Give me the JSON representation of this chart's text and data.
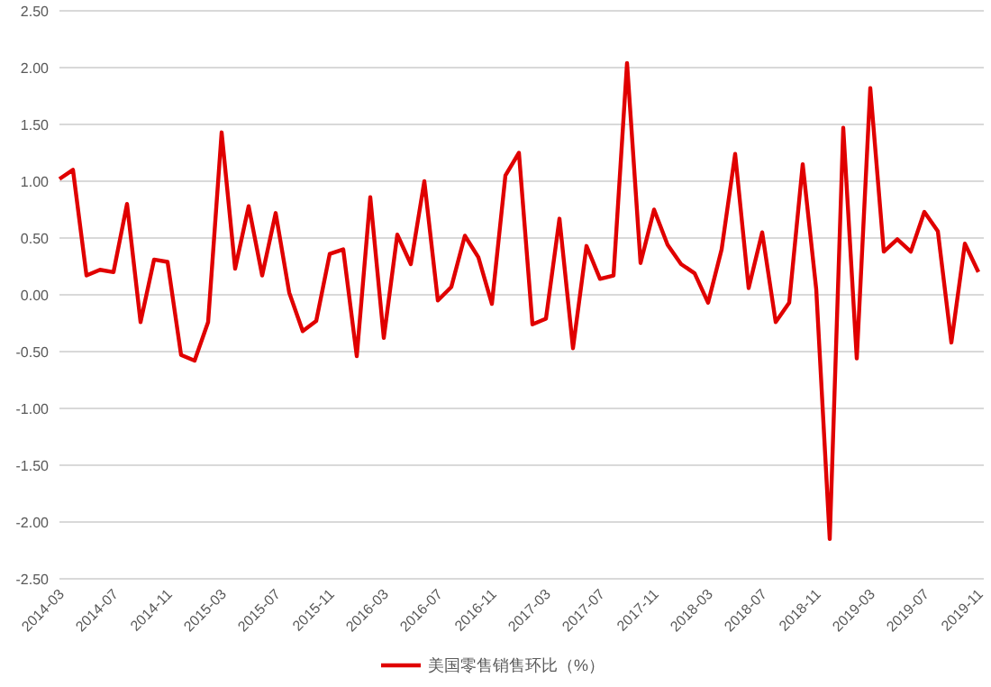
{
  "chart_data": {
    "type": "line",
    "categories": [
      "2014-03",
      null,
      null,
      null,
      "2014-07",
      null,
      null,
      null,
      "2014-11",
      null,
      null,
      null,
      "2015-03",
      null,
      null,
      null,
      "2015-07",
      null,
      null,
      null,
      "2015-11",
      null,
      null,
      null,
      "2016-03",
      null,
      null,
      null,
      "2016-07",
      null,
      null,
      null,
      "2016-11",
      null,
      null,
      null,
      "2017-03",
      null,
      null,
      null,
      "2017-07",
      null,
      null,
      null,
      "2017-11",
      null,
      null,
      null,
      "2018-03",
      null,
      null,
      null,
      "2018-07",
      null,
      null,
      null,
      "2018-11",
      null,
      null,
      null,
      "2019-03",
      null,
      null,
      null,
      "2019-07",
      null,
      null,
      null,
      "2019-11"
    ],
    "series": [
      {
        "name": "美国零售销售环比（%）",
        "color": "#e00000",
        "values": [
          1.02,
          1.1,
          0.17,
          0.22,
          0.2,
          0.8,
          -0.24,
          0.31,
          0.29,
          -0.53,
          -0.58,
          -0.24,
          1.43,
          0.23,
          0.78,
          0.17,
          0.72,
          0.02,
          -0.32,
          -0.23,
          0.36,
          0.4,
          -0.54,
          0.86,
          -0.38,
          0.53,
          0.27,
          1.0,
          -0.05,
          0.07,
          0.52,
          0.33,
          -0.08,
          1.05,
          1.25,
          -0.26,
          -0.21,
          0.67,
          -0.47,
          0.43,
          0.14,
          0.17,
          2.04,
          0.28,
          0.75,
          0.44,
          0.27,
          0.19,
          -0.07,
          0.4,
          1.24,
          0.06,
          0.55,
          -0.24,
          -0.07,
          1.15,
          0.05,
          -2.15,
          1.47,
          -0.56,
          1.82,
          0.38,
          0.49,
          0.38,
          0.73,
          0.56,
          -0.42,
          0.45,
          0.2
        ]
      }
    ],
    "ylim": [
      -2.5,
      2.5
    ],
    "yticks": [
      {
        "value": 2.5,
        "label": "2.50"
      },
      {
        "value": 2.0,
        "label": "2.00"
      },
      {
        "value": 1.5,
        "label": "1.50"
      },
      {
        "value": 1.0,
        "label": "1.00"
      },
      {
        "value": 0.5,
        "label": "0.50"
      },
      {
        "value": 0,
        "label": "0.00"
      },
      {
        "value": -0.5,
        "label": "-0.50"
      },
      {
        "value": -1.0,
        "label": "-1.00"
      },
      {
        "value": -1.5,
        "label": "-1.50"
      },
      {
        "value": -2.0,
        "label": "-2.00"
      },
      {
        "value": -2.5,
        "label": "-2.50"
      }
    ],
    "grid": "y",
    "legend": "bottom"
  }
}
